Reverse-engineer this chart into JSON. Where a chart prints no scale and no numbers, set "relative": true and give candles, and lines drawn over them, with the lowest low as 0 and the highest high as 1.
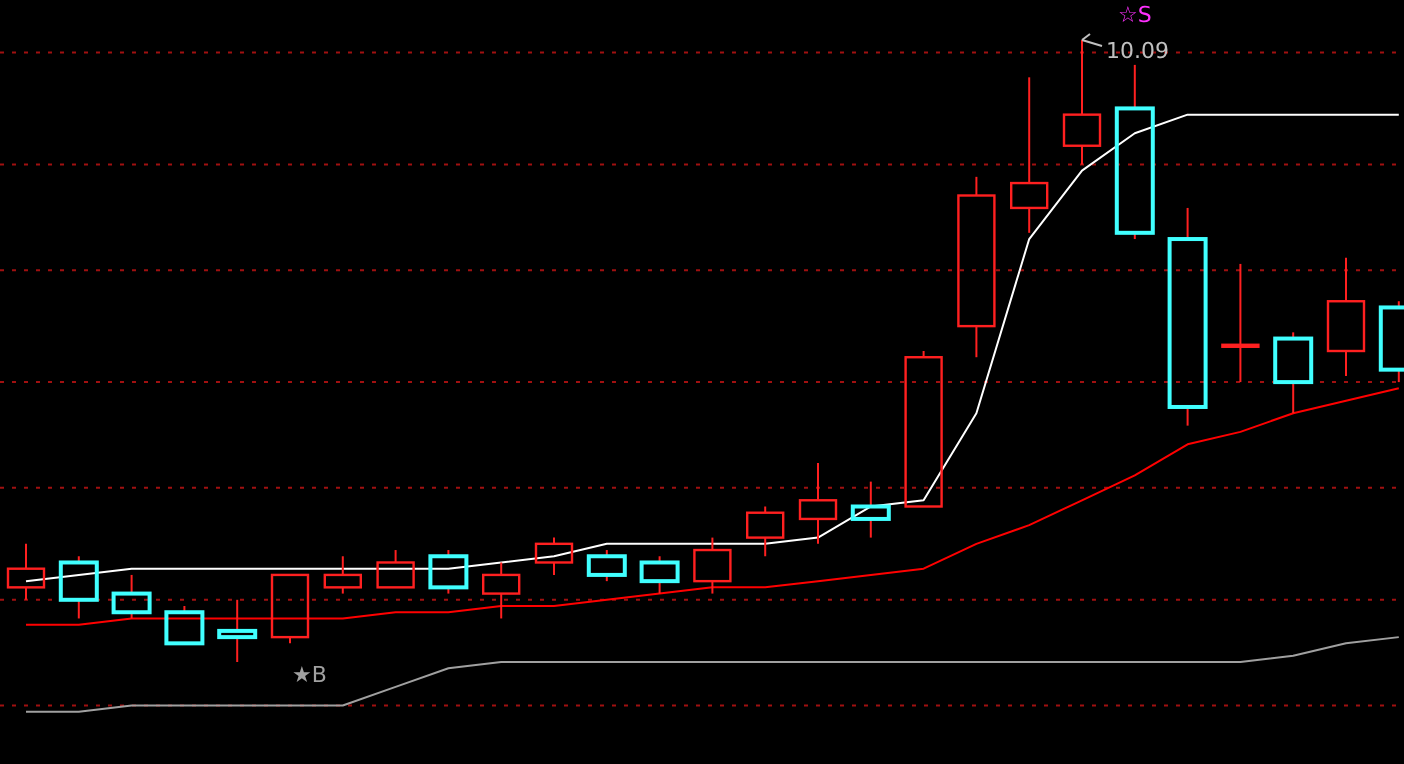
{
  "chart_data": {
    "type": "candlestick",
    "relative": true,
    "color": "#ff2020",
    "colors": [
      "#ff2020",
      "#40ffff",
      "#40ffff",
      "#40ffff",
      "#40ffff",
      "#ff2020",
      "#ff2020",
      "#ff2020",
      "#40ffff",
      "#ff2020",
      "#ff2020",
      "#40ffff",
      "#40ffff",
      "#ff2020",
      "#ff2020",
      "#ff2020",
      "#40ffff",
      "#ff2020",
      "#ff2020",
      "#ff2020",
      "#ff2020",
      "#40ffff",
      "#40ffff",
      "#ff2020",
      "#40ffff",
      "#ff2020",
      "#40ffff"
    ],
    "ref_lines": [
      {
        "axis": "y",
        "value": 0.98,
        "color": "#a01010",
        "line_style": "dotted"
      },
      {
        "axis": "y",
        "value": 0.8,
        "color": "#a01010",
        "line_style": "dotted"
      },
      {
        "axis": "y",
        "value": 0.63,
        "color": "#a01010",
        "line_style": "dotted"
      },
      {
        "axis": "y",
        "value": 0.45,
        "color": "#a01010",
        "line_style": "dotted"
      },
      {
        "axis": "y",
        "value": 0.28,
        "color": "#a01010",
        "line_style": "dotted"
      },
      {
        "axis": "y",
        "value": 0.1,
        "color": "#a01010",
        "line_style": "dotted"
      },
      {
        "axis": "y",
        "value": -0.07,
        "color": "#a01010",
        "line_style": "dotted"
      }
    ],
    "categories": [
      null,
      null,
      null,
      null,
      null,
      null,
      null,
      null,
      null,
      null,
      null,
      null,
      null,
      null,
      null,
      null,
      null,
      null,
      null,
      null,
      null,
      null,
      null,
      null,
      null,
      null,
      null
    ],
    "ohlc": [
      [
        0.12,
        0.19,
        0.1,
        0.15
      ],
      [
        0.16,
        0.17,
        0.07,
        0.1
      ],
      [
        0.11,
        0.14,
        0.07,
        0.08
      ],
      [
        0.08,
        0.09,
        0.03,
        0.03
      ],
      [
        0.05,
        0.1,
        0,
        0.04
      ],
      [
        0.04,
        0.14,
        0.03,
        0.14
      ],
      [
        0.12,
        0.17,
        0.11,
        0.14
      ],
      [
        0.12,
        0.18,
        0.12,
        0.16
      ],
      [
        0.17,
        0.18,
        0.11,
        0.12
      ],
      [
        0.11,
        0.16,
        0.07,
        0.14
      ],
      [
        0.16,
        0.2,
        0.14,
        0.19
      ],
      [
        0.17,
        0.18,
        0.13,
        0.14
      ],
      [
        0.16,
        0.17,
        0.11,
        0.13
      ],
      [
        0.13,
        0.2,
        0.11,
        0.18
      ],
      [
        0.2,
        0.25,
        0.17,
        0.24
      ],
      [
        0.23,
        0.32,
        0.19,
        0.26
      ],
      [
        0.25,
        0.29,
        0.2,
        0.23
      ],
      [
        0.25,
        0.5,
        0.25,
        0.49
      ],
      [
        0.54,
        0.78,
        0.49,
        0.75
      ],
      [
        0.73,
        0.94,
        0.69,
        0.77
      ],
      [
        0.83,
        1,
        0.8,
        0.88
      ],
      [
        0.89,
        0.96,
        0.68,
        0.69
      ],
      [
        0.68,
        0.73,
        0.38,
        0.41
      ],
      [
        0.51,
        0.64,
        0.45,
        0.51
      ],
      [
        0.52,
        0.53,
        0.4,
        0.45
      ],
      [
        0.5,
        0.65,
        0.46,
        0.58
      ],
      [
        0.57,
        0.58,
        0.45,
        0.47
      ]
    ],
    "series": [
      {
        "type": "line",
        "color": "#ffffff",
        "values": [
          0.13,
          0.14,
          0.15,
          0.15,
          0.15,
          0.15,
          0.15,
          0.15,
          0.15,
          0.16,
          0.17,
          0.19,
          0.19,
          0.19,
          0.19,
          0.2,
          0.25,
          0.26,
          0.4,
          0.68,
          0.79,
          0.85,
          0.88,
          0.88,
          0.88,
          0.88,
          0.88
        ]
      },
      {
        "type": "line",
        "color": "#ff0000",
        "values": [
          0.06,
          0.06,
          0.07,
          0.07,
          0.07,
          0.07,
          0.07,
          0.08,
          0.08,
          0.09,
          0.09,
          0.1,
          0.11,
          0.12,
          0.12,
          0.13,
          0.14,
          0.15,
          0.19,
          0.22,
          0.26,
          0.3,
          0.35,
          0.37,
          0.4,
          0.42,
          0.44
        ]
      },
      {
        "type": "line",
        "color": "#a0a0a0",
        "values": [
          -0.08,
          -0.08,
          -0.07,
          -0.07,
          -0.07,
          -0.07,
          -0.07,
          -0.04,
          -0.01,
          0,
          0,
          0,
          0,
          0,
          0,
          0,
          0,
          0,
          0,
          0,
          0,
          0,
          0,
          0,
          0.01,
          0.03,
          0.04
        ]
      }
    ],
    "annotations": [
      "10.09",
      "☆S",
      "★B"
    ]
  }
}
